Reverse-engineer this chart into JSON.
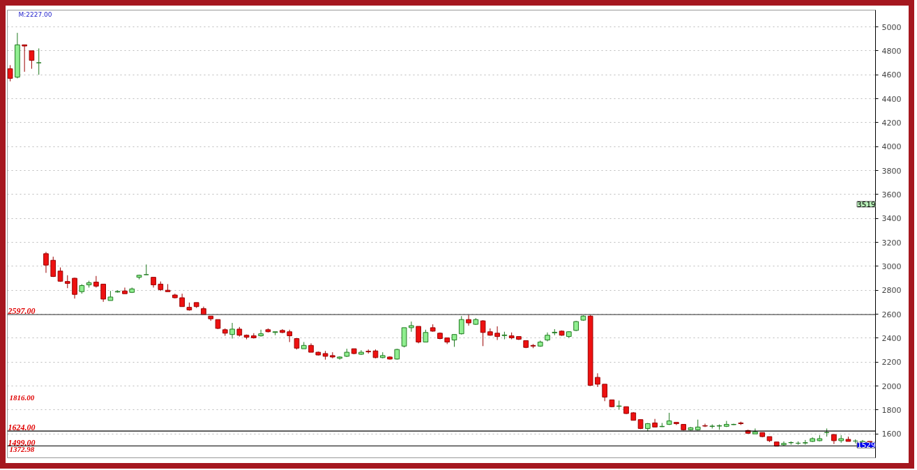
{
  "chart_data": {
    "type": "candlestick",
    "categories": [
      null,
      null,
      null,
      null,
      null,
      null,
      null,
      null,
      null,
      null,
      null,
      null,
      null,
      null,
      null,
      null,
      null,
      null,
      null,
      null,
      null,
      null,
      null,
      null,
      null,
      null,
      null,
      null,
      null,
      null,
      null,
      null,
      null,
      null,
      null,
      null,
      null,
      null,
      null,
      null,
      null,
      null,
      null,
      null,
      null,
      null,
      null,
      null,
      null,
      null,
      null,
      null,
      null,
      null,
      null,
      null,
      null,
      null,
      null,
      null,
      null,
      null,
      null,
      null,
      null,
      null,
      null,
      null,
      null,
      null,
      null,
      null,
      null,
      null,
      null,
      null,
      null,
      null,
      null,
      null,
      null,
      null,
      null,
      null,
      null,
      null,
      null,
      null,
      null,
      null,
      null,
      null,
      null,
      null,
      null,
      null,
      null,
      null,
      null,
      null,
      null,
      null,
      null,
      null,
      null,
      null,
      null,
      null,
      null,
      null,
      null,
      null,
      null,
      null,
      null,
      null,
      null,
      null,
      null,
      null,
      null
    ],
    "ohlc": [
      [
        4650,
        4680,
        4545,
        4570
      ],
      [
        4580,
        4950,
        4570,
        4850
      ],
      [
        4850,
        4850,
        4625,
        4840
      ],
      [
        4800,
        4800,
        4650,
        4720
      ],
      [
        4700,
        4820,
        4600,
        4700
      ],
      [
        3105,
        3120,
        2945,
        3010
      ],
      [
        3050,
        3080,
        2910,
        2915
      ],
      [
        2960,
        2990,
        2870,
        2875
      ],
      [
        2873,
        2925,
        2817,
        2857
      ],
      [
        2900,
        2905,
        2730,
        2765
      ],
      [
        2788,
        2850,
        2771,
        2839
      ],
      [
        2845,
        2879,
        2822,
        2862
      ],
      [
        2868,
        2919,
        2822,
        2834
      ],
      [
        2851,
        2851,
        2703,
        2726
      ],
      [
        2714,
        2794,
        2714,
        2743
      ],
      [
        2785,
        2800,
        2780,
        2790
      ],
      [
        2794,
        2822,
        2771,
        2771
      ],
      [
        2782,
        2822,
        2777,
        2811
      ],
      [
        2908,
        2930,
        2891,
        2925
      ],
      [
        2930,
        3015,
        2928,
        2930
      ],
      [
        2908,
        2908,
        2822,
        2845
      ],
      [
        2851,
        2873,
        2794,
        2805
      ],
      [
        2800,
        2851,
        2788,
        2788
      ],
      [
        2760,
        2771,
        2731,
        2737
      ],
      [
        2737,
        2771,
        2663,
        2663
      ],
      [
        2657,
        2697,
        2629,
        2635
      ],
      [
        2697,
        2697,
        2652,
        2663
      ],
      [
        2646,
        2663,
        2595,
        2595
      ],
      [
        2584,
        2584,
        2544,
        2561
      ],
      [
        2555,
        2555,
        2475,
        2481
      ],
      [
        2470,
        2481,
        2419,
        2441
      ],
      [
        2430,
        2527,
        2396,
        2475
      ],
      [
        2475,
        2493,
        2413,
        2424
      ],
      [
        2424,
        2430,
        2390,
        2407
      ],
      [
        2419,
        2441,
        2396,
        2402
      ],
      [
        2419,
        2470,
        2413,
        2436
      ],
      [
        2470,
        2481,
        2447,
        2453
      ],
      [
        2447,
        2453,
        2424,
        2453
      ],
      [
        2464,
        2475,
        2441,
        2447
      ],
      [
        2453,
        2470,
        2367,
        2419
      ],
      [
        2396,
        2396,
        2305,
        2316
      ],
      [
        2311,
        2367,
        2311,
        2339
      ],
      [
        2339,
        2356,
        2282,
        2282
      ],
      [
        2282,
        2288,
        2254,
        2259
      ],
      [
        2271,
        2293,
        2220,
        2248
      ],
      [
        2254,
        2282,
        2231,
        2242
      ],
      [
        2231,
        2248,
        2220,
        2242
      ],
      [
        2248,
        2311,
        2242,
        2282
      ],
      [
        2311,
        2311,
        2265,
        2271
      ],
      [
        2265,
        2299,
        2259,
        2282
      ],
      [
        2290,
        2305,
        2271,
        2285
      ],
      [
        2293,
        2305,
        2231,
        2237
      ],
      [
        2237,
        2282,
        2231,
        2254
      ],
      [
        2242,
        2248,
        2220,
        2225
      ],
      [
        2225,
        2311,
        2220,
        2305
      ],
      [
        2333,
        2487,
        2322,
        2487
      ],
      [
        2487,
        2538,
        2453,
        2504
      ],
      [
        2498,
        2498,
        2356,
        2367
      ],
      [
        2367,
        2470,
        2367,
        2447
      ],
      [
        2487,
        2515,
        2453,
        2458
      ],
      [
        2441,
        2447,
        2390,
        2396
      ],
      [
        2402,
        2402,
        2350,
        2367
      ],
      [
        2384,
        2430,
        2327,
        2430
      ],
      [
        2436,
        2584,
        2430,
        2555
      ],
      [
        2555,
        2595,
        2504,
        2527
      ],
      [
        2515,
        2567,
        2510,
        2555
      ],
      [
        2544,
        2550,
        2333,
        2447
      ],
      [
        2453,
        2481,
        2419,
        2424
      ],
      [
        2441,
        2498,
        2384,
        2413
      ],
      [
        2421,
        2453,
        2390,
        2426
      ],
      [
        2419,
        2447,
        2390,
        2402
      ],
      [
        2413,
        2413,
        2384,
        2390
      ],
      [
        2379,
        2379,
        2316,
        2322
      ],
      [
        2339,
        2350,
        2316,
        2333
      ],
      [
        2333,
        2379,
        2327,
        2367
      ],
      [
        2384,
        2447,
        2373,
        2424
      ],
      [
        2444,
        2475,
        2424,
        2449
      ],
      [
        2458,
        2464,
        2419,
        2424
      ],
      [
        2413,
        2458,
        2402,
        2453
      ],
      [
        2464,
        2544,
        2458,
        2538
      ],
      [
        2550,
        2590,
        2544,
        2584
      ],
      [
        2584,
        2595,
        2000,
        2005
      ],
      [
        2072,
        2106,
        1992,
        2015
      ],
      [
        2015,
        2015,
        1873,
        1907
      ],
      [
        1884,
        1884,
        1822,
        1827
      ],
      [
        1830,
        1878,
        1804,
        1833
      ],
      [
        1827,
        1827,
        1765,
        1770
      ],
      [
        1776,
        1782,
        1713,
        1713
      ],
      [
        1719,
        1719,
        1640,
        1645
      ],
      [
        1645,
        1691,
        1622,
        1685
      ],
      [
        1691,
        1725,
        1657,
        1657
      ],
      [
        1660,
        1691,
        1657,
        1663
      ],
      [
        1679,
        1776,
        1674,
        1708
      ],
      [
        1696,
        1696,
        1674,
        1685
      ],
      [
        1679,
        1679,
        1628,
        1634
      ],
      [
        1634,
        1657,
        1628,
        1651
      ],
      [
        1634,
        1719,
        1628,
        1657
      ],
      [
        1668,
        1685,
        1657,
        1665
      ],
      [
        1662,
        1679,
        1645,
        1665
      ],
      [
        1665,
        1679,
        1634,
        1668
      ],
      [
        1663,
        1708,
        1657,
        1679
      ],
      [
        1677,
        1685,
        1674,
        1679
      ],
      [
        1691,
        1702,
        1674,
        1685
      ],
      [
        1628,
        1634,
        1600,
        1605
      ],
      [
        1600,
        1645,
        1600,
        1617
      ],
      [
        1611,
        1611,
        1571,
        1577
      ],
      [
        1577,
        1577,
        1532,
        1543
      ],
      [
        1532,
        1532,
        1497,
        1497
      ],
      [
        1509,
        1537,
        1503,
        1520
      ],
      [
        1526,
        1537,
        1509,
        1528
      ],
      [
        1522,
        1537,
        1509,
        1522
      ],
      [
        1524,
        1549,
        1509,
        1526
      ],
      [
        1537,
        1571,
        1532,
        1560
      ],
      [
        1543,
        1589,
        1537,
        1560
      ],
      [
        1611,
        1645,
        1577,
        1611
      ],
      [
        1594,
        1600,
        1515,
        1543
      ],
      [
        1543,
        1589,
        1526,
        1560
      ],
      [
        1554,
        1577,
        1537,
        1537
      ],
      [
        1540,
        1554,
        1520,
        1540
      ],
      [
        1526,
        1549,
        1526,
        1537
      ],
      [
        1537,
        1537,
        1526,
        1526
      ]
    ],
    "ylim": [
      1400,
      5140
    ],
    "yticks": [
      1600,
      1800,
      2000,
      2200,
      2400,
      2600,
      2800,
      3000,
      3200,
      3400,
      3600,
      3800,
      4000,
      4200,
      4400,
      4600,
      4800,
      5000
    ],
    "grid": "y",
    "ref_lines": [
      {
        "axis": "y",
        "value": 2597,
        "label": "2597.00",
        "color": "#555555"
      },
      {
        "axis": "y",
        "value": 1624,
        "label": "1624.00",
        "color": "#000000"
      },
      {
        "axis": "y",
        "value": 1499,
        "label": "1499.00",
        "color": "#000000"
      }
    ],
    "annotations": [
      "M:2227.00",
      "1816.00",
      "1372.98",
      "3519",
      "1529"
    ]
  }
}
